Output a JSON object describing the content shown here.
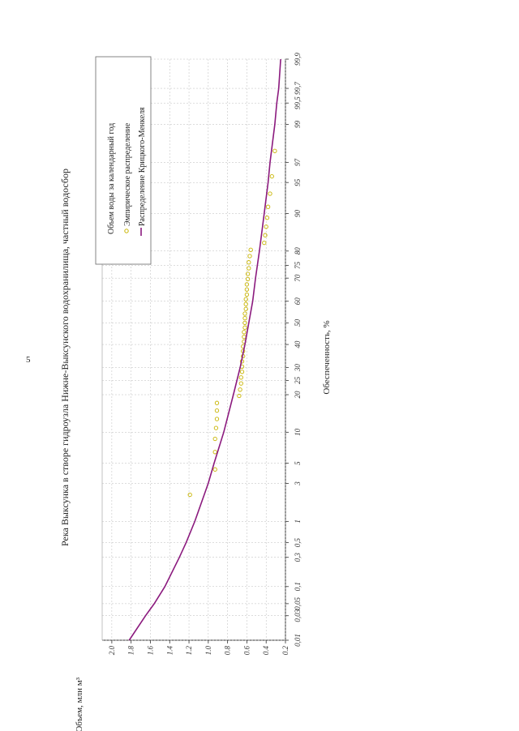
{
  "page_number": "5",
  "chart_data": {
    "type": "scatter",
    "title": "Река Выксунка в створе гидроузла Нижне-Выксунского водохранилища, частный водосбор",
    "xlabel": "Обеспеченность, %",
    "ylabel": "Объем, млн м³",
    "x_scale": "probability",
    "x_ticks": [
      "0,01",
      "0,03",
      "0,05",
      "0,1",
      "0,3",
      "0,5",
      "1",
      "3",
      "5",
      "10",
      "20",
      "25",
      "30",
      "40",
      "50",
      "60",
      "70",
      "75",
      "80",
      "90",
      "95",
      "97",
      "99",
      "99,5",
      "99,7",
      "99,9"
    ],
    "y_ticks": [
      "2.0",
      "1.8",
      "1.6",
      "1.4",
      "1.2",
      "1.0",
      "0.8",
      "0.6",
      "0.4",
      "0.2"
    ],
    "ylim": [
      0.2,
      2.1
    ],
    "grid": true,
    "legend_position": "top-right",
    "legend_title": "Объем воды за календарный год",
    "series": [
      {
        "name": "Эмпирическое распределение",
        "kind": "points",
        "color": "#c8b400",
        "x": [
          2.2,
          4.3,
          6.5,
          8.7,
          10.9,
          13.0,
          15.2,
          17.4,
          19.6,
          21.7,
          23.9,
          26.1,
          28.3,
          30.4,
          32.6,
          34.8,
          37.0,
          39.1,
          41.3,
          43.5,
          45.7,
          47.8,
          50.0,
          52.2,
          54.3,
          56.5,
          58.7,
          60.9,
          63.0,
          65.2,
          67.4,
          69.6,
          71.7,
          73.9,
          76.1,
          78.3,
          80.4,
          82.6,
          84.8,
          87.0,
          89.1,
          91.3,
          93.5,
          95.7,
          97.8
        ],
        "y": [
          1.19,
          0.93,
          0.93,
          0.93,
          0.92,
          0.91,
          0.91,
          0.91,
          0.68,
          0.67,
          0.66,
          0.66,
          0.65,
          0.65,
          0.65,
          0.64,
          0.64,
          0.64,
          0.63,
          0.63,
          0.63,
          0.62,
          0.62,
          0.62,
          0.62,
          0.61,
          0.61,
          0.61,
          0.6,
          0.6,
          0.6,
          0.59,
          0.59,
          0.58,
          0.58,
          0.57,
          0.56,
          0.42,
          0.41,
          0.4,
          0.39,
          0.38,
          0.36,
          0.34,
          0.31
        ]
      },
      {
        "name": "Распределение Крицкого-Менкеля",
        "kind": "line",
        "color": "#8b1a7e",
        "x": [
          0.01,
          0.03,
          0.05,
          0.1,
          0.3,
          0.5,
          1,
          3,
          5,
          10,
          20,
          30,
          40,
          50,
          60,
          70,
          80,
          90,
          95,
          97,
          99,
          99.5,
          99.7,
          99.9
        ],
        "y": [
          1.82,
          1.65,
          1.56,
          1.45,
          1.3,
          1.23,
          1.14,
          1.0,
          0.94,
          0.84,
          0.74,
          0.67,
          0.62,
          0.58,
          0.54,
          0.51,
          0.47,
          0.42,
          0.38,
          0.36,
          0.31,
          0.29,
          0.27,
          0.25
        ]
      }
    ]
  }
}
